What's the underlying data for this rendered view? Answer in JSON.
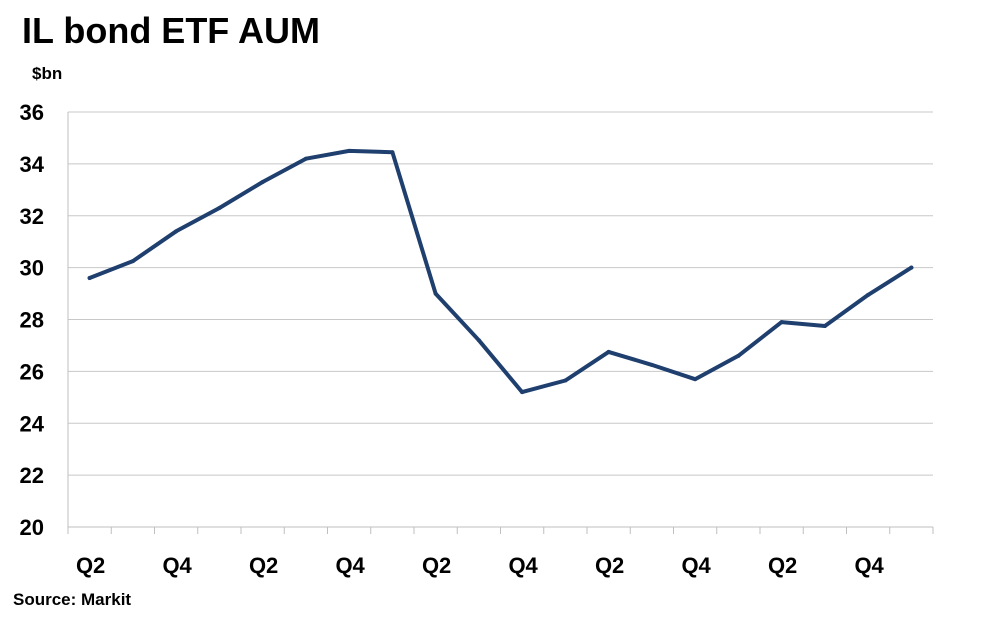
{
  "chart_data": {
    "type": "line",
    "title": "IL bond ETF AUM",
    "ylabel": "$bn",
    "source": "Source: Markit",
    "ylim": [
      20,
      36
    ],
    "y_ticks": [
      20,
      22,
      24,
      26,
      28,
      30,
      32,
      34,
      36
    ],
    "x_tick_labels": [
      "Q2",
      "Q4",
      "Q2",
      "Q4",
      "Q2",
      "Q4",
      "Q2",
      "Q4",
      "Q2",
      "Q4"
    ],
    "grid": true,
    "colors": {
      "line": "#1f3f6e",
      "grid": "#c8c8c8",
      "axis": "#bfbfbf"
    },
    "series": [
      {
        "values": [
          29.6,
          30.25,
          31.4,
          32.3,
          33.3,
          34.2,
          34.5,
          34.45,
          29.0,
          27.2,
          25.2,
          25.65,
          26.75,
          26.25,
          25.7,
          26.6,
          27.9,
          27.75,
          28.95,
          30.0
        ]
      }
    ]
  }
}
